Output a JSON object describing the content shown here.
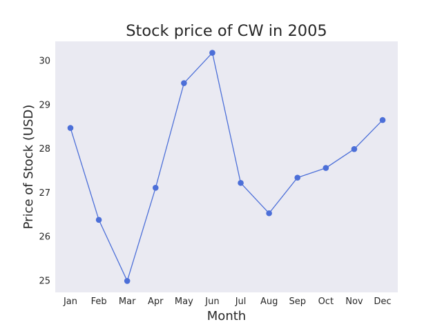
{
  "chart_data": {
    "type": "line",
    "title": "Stock price of CW in 2005",
    "xlabel": "Month",
    "ylabel": "Price of Stock (USD)",
    "categories": [
      "Jan",
      "Feb",
      "Mar",
      "Apr",
      "May",
      "Jun",
      "Jul",
      "Aug",
      "Sep",
      "Oct",
      "Nov",
      "Dec"
    ],
    "values": [
      28.47,
      26.38,
      24.99,
      27.11,
      29.49,
      30.18,
      27.22,
      26.53,
      27.34,
      27.56,
      27.99,
      28.65
    ],
    "yticks": [
      "25",
      "26",
      "27",
      "28",
      "29",
      "30"
    ],
    "ylim": [
      24.73,
      30.44
    ],
    "grid": false,
    "colors": {
      "plot_background": "#eaeaf2",
      "line": "#4c6fd8",
      "marker": "#4c6fd8"
    }
  }
}
